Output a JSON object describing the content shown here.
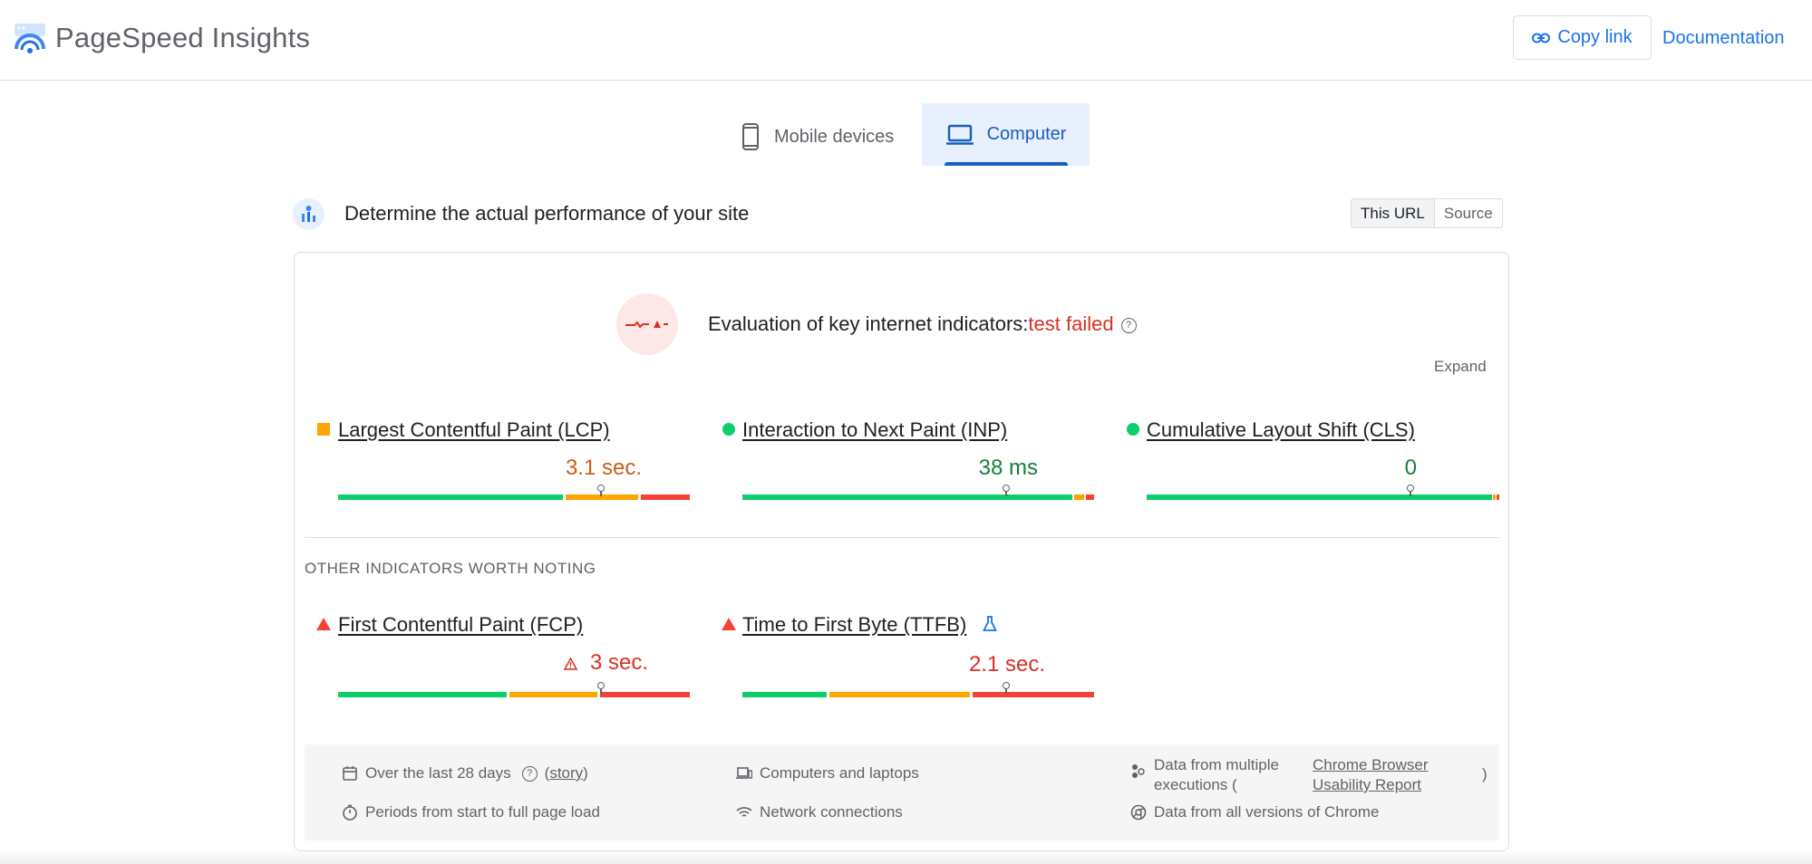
{
  "header": {
    "brand": "PageSpeed Insights",
    "copy_link_label": "Copy link",
    "documentation_label": "Documentation"
  },
  "tabs": {
    "mobile_label": "Mobile devices",
    "computer_label": "Computer",
    "selected": "Computer"
  },
  "section": {
    "title": "Determine the actual performance of your site",
    "toggle": {
      "this_url": "This URL",
      "source": "Source",
      "selected": "This URL"
    }
  },
  "evaluation": {
    "prefix": "Evaluation of key internet indicators:",
    "status": "test failed",
    "expand_label": "Expand"
  },
  "core_metrics": [
    {
      "name": "Largest Contentful Paint (LCP)",
      "value": "3.1 sec.",
      "status": "needs-improvement"
    },
    {
      "name": "Interaction to Next Paint (INP)",
      "value": "38 ms",
      "status": "good"
    },
    {
      "name": "Cumulative Layout Shift (CLS)",
      "value": "0",
      "status": "good"
    }
  ],
  "other": {
    "label": "OTHER INDICATORS WORTH NOTING",
    "metrics": [
      {
        "name": "First Contentful Paint (FCP)",
        "value": "3 sec.",
        "status": "poor"
      },
      {
        "name": "Time to First Byte (TTFB)",
        "value": "2.1 sec.",
        "status": "poor"
      }
    ]
  },
  "footer": {
    "period": "Over the last 28 days",
    "story_link": "story",
    "page_load": "Periods from start to full page load",
    "devices": "Computers and laptops",
    "network": "Network connections",
    "data_source_prefix": "Data from multiple executions (",
    "report_link_line1": "Chrome Browser",
    "report_link_line2": "Usability Report",
    "close_paren": ")",
    "chrome_versions": "Data from all versions of Chrome"
  },
  "colors": {
    "good": "#0cce6b",
    "needs_improvement": "#ffa400",
    "poor": "#f44336",
    "accent": "#1a73e8"
  }
}
